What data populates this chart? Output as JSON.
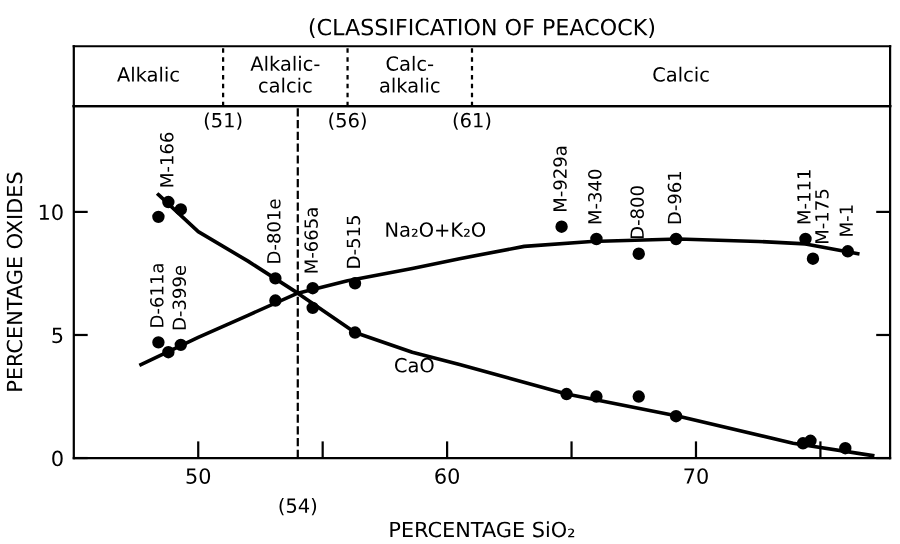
{
  "chart_data": {
    "type": "line",
    "title": "(CLASSIFICATION OF PEACOCK)",
    "xlabel": "PERCENTAGE SiO₂",
    "ylabel": "PERCENTAGE OXIDES",
    "xlim": [
      45,
      77.8
    ],
    "ylim": [
      0,
      14.3
    ],
    "xticks": [
      50,
      {
        "value": 55,
        "label": null
      },
      60,
      {
        "value": 65,
        "label": null
      },
      70,
      {
        "value": 75,
        "label": null
      }
    ],
    "yticks": [
      0,
      5,
      10
    ],
    "series": [
      {
        "name": "Na₂O+K₂O",
        "color": "#000000",
        "x": [
          47.7,
          50,
          52,
          54,
          56,
          58.6,
          60.5,
          63.1,
          65.8,
          69.3,
          72.5,
          74.4,
          76.5
        ],
        "values": [
          3.8,
          4.9,
          5.8,
          6.7,
          7.2,
          7.7,
          8.1,
          8.6,
          8.8,
          8.9,
          8.8,
          8.7,
          8.3
        ]
      },
      {
        "type": "scatter",
        "marker": "circle",
        "color": "#000000",
        "x": [
          48.4,
          48.8,
          49.3,
          53.1,
          54.6,
          56.3,
          64.6,
          66.0,
          67.7,
          69.2,
          74.4,
          74.7,
          76.1
        ],
        "values": [
          4.7,
          4.3,
          4.6,
          6.4,
          6.9,
          7.1,
          9.4,
          8.9,
          8.3,
          8.9,
          8.9,
          8.1,
          8.4
        ]
      },
      {
        "name": "CaO",
        "color": "#000000",
        "x": [
          48.4,
          50,
          52,
          54,
          56.3,
          58.6,
          60.5,
          64.8,
          69.3,
          73.9,
          77.1
        ],
        "values": [
          10.7,
          9.2,
          8.0,
          6.7,
          5.1,
          4.3,
          3.8,
          2.6,
          1.7,
          0.6,
          0.1
        ]
      },
      {
        "type": "scatter",
        "marker": "circle",
        "color": "#000000",
        "x": [
          48.4,
          48.8,
          49.3,
          53.1,
          54.6,
          56.3,
          64.8,
          66.0,
          67.7,
          69.2,
          74.3,
          74.6,
          76.0
        ],
        "values": [
          9.8,
          10.4,
          10.1,
          7.3,
          6.1,
          5.1,
          2.6,
          2.5,
          2.5,
          1.7,
          0.6,
          0.7,
          0.4
        ]
      }
    ],
    "ref_lines": [
      {
        "axis": "x",
        "value": 51,
        "label": "(51)",
        "line_style": "dotted",
        "color": "#000000"
      },
      {
        "axis": "x",
        "value": 56,
        "label": "(56)",
        "line_style": "dotted",
        "color": "#000000"
      },
      {
        "axis": "x",
        "value": 61,
        "label": "(61)",
        "line_style": "dotted",
        "color": "#000000"
      },
      {
        "axis": "x",
        "value": 54,
        "label": "(54)",
        "line_style": "dashed",
        "color": "#000000"
      }
    ],
    "annotations": [
      "Alkalic",
      "Alkalic-calcic",
      "Calc-alkalic",
      "Calcic",
      {
        "text": "D-611a",
        "x": 48.4,
        "y": 4.7
      },
      {
        "text": "D-399e",
        "x": 49.3,
        "y": 4.6
      },
      {
        "text": "M-166",
        "x": 48.8,
        "y": 10.4
      },
      {
        "text": "D-801e",
        "x": 53.1,
        "y": 7.3
      },
      {
        "text": "M-665a",
        "x": 54.6,
        "y": 6.9
      },
      {
        "text": "D-515",
        "x": 56.3,
        "y": 7.1
      },
      {
        "text": "M-929a",
        "x": 64.6,
        "y": 9.4
      },
      {
        "text": "M-340",
        "x": 66.0,
        "y": 8.9
      },
      {
        "text": "D-800",
        "x": 67.7,
        "y": 8.3
      },
      {
        "text": "D-961",
        "x": 69.2,
        "y": 8.9
      },
      {
        "text": "M-111",
        "x": 74.4,
        "y": 8.9
      },
      {
        "text": "M-175",
        "x": 74.7,
        "y": 8.1
      },
      {
        "text": "M-1",
        "x": 76.1,
        "y": 8.4
      }
    ]
  }
}
